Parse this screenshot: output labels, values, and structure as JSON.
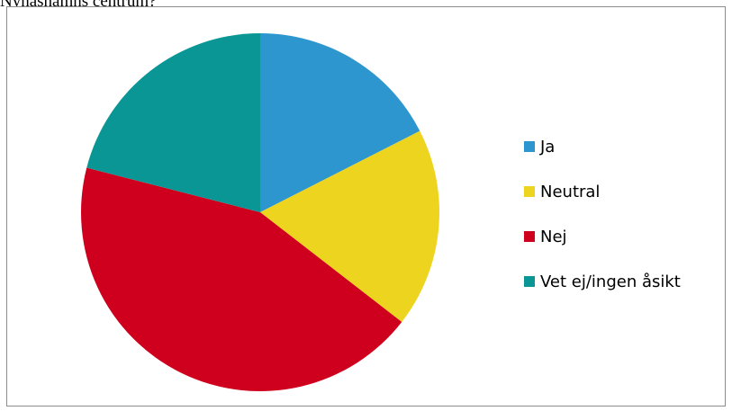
{
  "page_heading": "Nynäshamns centrum?",
  "chart_data": {
    "type": "pie",
    "title": "",
    "categories": [
      "Ja",
      "Neutral",
      "Nej",
      "Vet ej/ingen åsikt"
    ],
    "values": [
      17.5,
      18,
      43.5,
      21
    ],
    "colors": [
      "#2E96CF",
      "#EDD41F",
      "#CF001D",
      "#0B9696"
    ],
    "start_angle_deg": 0,
    "direction": "clockwise",
    "legend_position": "right"
  }
}
